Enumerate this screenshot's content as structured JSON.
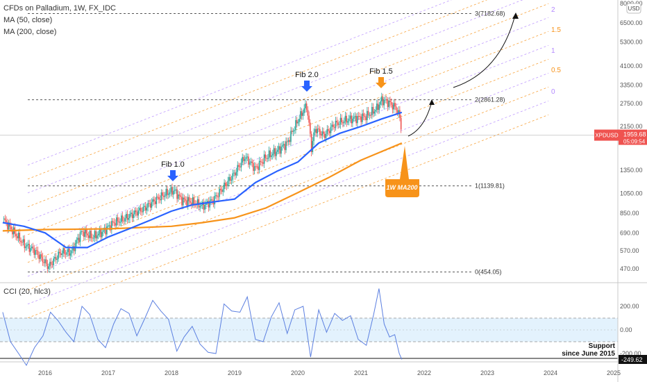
{
  "header": {
    "symbol_title": "CFDs on Palladium, 1W, FX_IDC",
    "study_ma50": "MA (50, close)",
    "study_ma200": "MA (200, close)",
    "currency_badge": "USD"
  },
  "indicator": {
    "label": "CCI (20, hlc3)"
  },
  "price_tag": {
    "symbol": "XPDUSD",
    "price": "1959.68",
    "countdown": "05:09:54"
  },
  "cci_tag": {
    "value": "-249.62"
  },
  "colors": {
    "bull": "#26a69a",
    "bear": "#ef5350",
    "ma50": "#2962ff",
    "ma200": "#f7931a",
    "fib_orange": "#f7931a",
    "fib_purple": "#b388ff",
    "cci_line": "#5b7fe0",
    "cci_band": "#e3f2fd"
  },
  "annotations": {
    "fib_labels": [
      "Fib 1.0",
      "Fib 2.0",
      "Fib 1.5"
    ],
    "ma200_callout": "1W MA200",
    "support_line1": "Support",
    "support_line2": "since June 2015"
  },
  "chart_data": [
    {
      "type": "line",
      "title": "CFDs on Palladium, 1W, FX_IDC",
      "xlabel": "",
      "ylabel": "",
      "y_scale": "log",
      "ylim": [
        400,
        8000
      ],
      "xlim": [
        "2015-05-01",
        "2025-01-01"
      ],
      "x_ticks": [
        "2016",
        "2017",
        "2018",
        "2019",
        "2020",
        "2021",
        "2022",
        "2023",
        "2024",
        "2025"
      ],
      "y_ticks": [
        "8000.00",
        "6500.00",
        "5300.00",
        "4100.00",
        "3350.00",
        "2750.00",
        "2150.00",
        "1350.00",
        "1050.00",
        "850.00",
        "690.00",
        "570.00",
        "470.00"
      ],
      "series": [
        {
          "name": "CFDs on Palladium",
          "x": [
            "2015-05-01",
            "2015-07-01",
            "2015-09-01",
            "2015-11-01",
            "2016-01-20",
            "2016-04-01",
            "2016-06-01",
            "2016-08-01",
            "2016-10-01",
            "2016-12-01",
            "2017-02-01",
            "2017-04-01",
            "2017-06-01",
            "2017-08-01",
            "2017-10-01",
            "2017-12-01",
            "2018-01-15",
            "2018-03-01",
            "2018-05-01",
            "2018-07-01",
            "2018-09-01",
            "2018-11-01",
            "2019-01-01",
            "2019-03-01",
            "2019-05-01",
            "2019-07-01",
            "2019-09-01",
            "2019-11-01",
            "2020-01-15",
            "2020-02-20",
            "2020-03-20",
            "2020-04-10",
            "2020-06-01",
            "2020-08-01",
            "2020-10-01",
            "2020-12-01",
            "2021-02-01",
            "2021-04-01",
            "2021-05-01",
            "2021-06-01",
            "2021-07-01",
            "2021-07-25",
            "2021-08-15",
            "2021-08-25"
          ],
          "y": [
            800,
            700,
            610,
            570,
            480,
            560,
            560,
            700,
            660,
            700,
            770,
            800,
            850,
            900,
            980,
            1050,
            1090,
            980,
            960,
            920,
            980,
            1130,
            1300,
            1550,
            1370,
            1550,
            1650,
            1800,
            2400,
            2700,
            1700,
            2100,
            1950,
            2200,
            2300,
            2350,
            2400,
            2600,
            2850,
            2800,
            2700,
            2600,
            2350,
            1960
          ]
        },
        {
          "name": "MA (50, close)",
          "x": [
            "2015-05-01",
            "2015-09-01",
            "2016-01-01",
            "2016-05-01",
            "2016-09-01",
            "2017-01-01",
            "2017-05-01",
            "2017-09-01",
            "2018-01-01",
            "2018-05-01",
            "2018-09-01",
            "2019-01-01",
            "2019-05-01",
            "2019-09-01",
            "2020-01-01",
            "2020-05-01",
            "2020-09-01",
            "2021-01-01",
            "2021-05-01",
            "2021-08-25"
          ],
          "y": [
            770,
            740,
            690,
            590,
            590,
            660,
            720,
            790,
            870,
            930,
            960,
            990,
            1180,
            1330,
            1470,
            1800,
            2000,
            2150,
            2330,
            2500
          ]
        },
        {
          "name": "MA (200, close)",
          "x": [
            "2015-05-01",
            "2016-01-01",
            "2017-01-01",
            "2018-01-01",
            "2018-07-01",
            "2019-01-01",
            "2019-07-01",
            "2020-01-01",
            "2020-07-01",
            "2021-01-01",
            "2021-08-25"
          ],
          "y": [
            705,
            715,
            720,
            740,
            770,
            810,
            900,
            1060,
            1250,
            1500,
            1800
          ]
        }
      ]
    },
    {
      "type": "line",
      "title": "CCI (20, hlc3)",
      "ylim": [
        -300,
        300
      ],
      "y_ticks": [
        "200.00",
        "0.00",
        "-200.00"
      ],
      "series": [
        {
          "name": "CCI (20, hlc3)",
          "x": [
            "2015-05-01",
            "2015-06-15",
            "2015-08-01",
            "2015-09-15",
            "2015-11-01",
            "2015-12-20",
            "2016-02-01",
            "2016-03-15",
            "2016-05-01",
            "2016-06-15",
            "2016-08-01",
            "2016-09-15",
            "2016-11-01",
            "2016-12-15",
            "2017-02-01",
            "2017-03-15",
            "2017-05-01",
            "2017-06-15",
            "2017-08-01",
            "2017-09-15",
            "2017-11-01",
            "2017-12-15",
            "2018-02-01",
            "2018-03-15",
            "2018-05-01",
            "2018-06-15",
            "2018-08-01",
            "2018-09-15",
            "2018-11-01",
            "2018-12-15",
            "2019-02-01",
            "2019-03-15",
            "2019-05-01",
            "2019-06-15",
            "2019-08-01",
            "2019-09-15",
            "2019-11-01",
            "2019-12-15",
            "2020-02-01",
            "2020-03-15",
            "2020-05-01",
            "2020-06-15",
            "2020-08-01",
            "2020-09-15",
            "2020-11-01",
            "2020-12-15",
            "2021-02-01",
            "2021-03-15",
            "2021-04-15",
            "2021-05-15",
            "2021-06-15",
            "2021-07-15",
            "2021-08-10",
            "2021-08-25"
          ],
          "y": [
            150,
            -100,
            -200,
            -300,
            -150,
            -50,
            150,
            80,
            -20,
            -100,
            200,
            130,
            -80,
            -150,
            50,
            180,
            140,
            -50,
            100,
            250,
            160,
            90,
            -180,
            -60,
            30,
            -120,
            -190,
            -200,
            220,
            160,
            150,
            280,
            -80,
            -100,
            110,
            230,
            -30,
            170,
            200,
            -230,
            170,
            -20,
            140,
            80,
            120,
            -80,
            -130,
            130,
            350,
            50,
            -60,
            -40,
            -200,
            -249.62
          ]
        }
      ]
    }
  ]
}
